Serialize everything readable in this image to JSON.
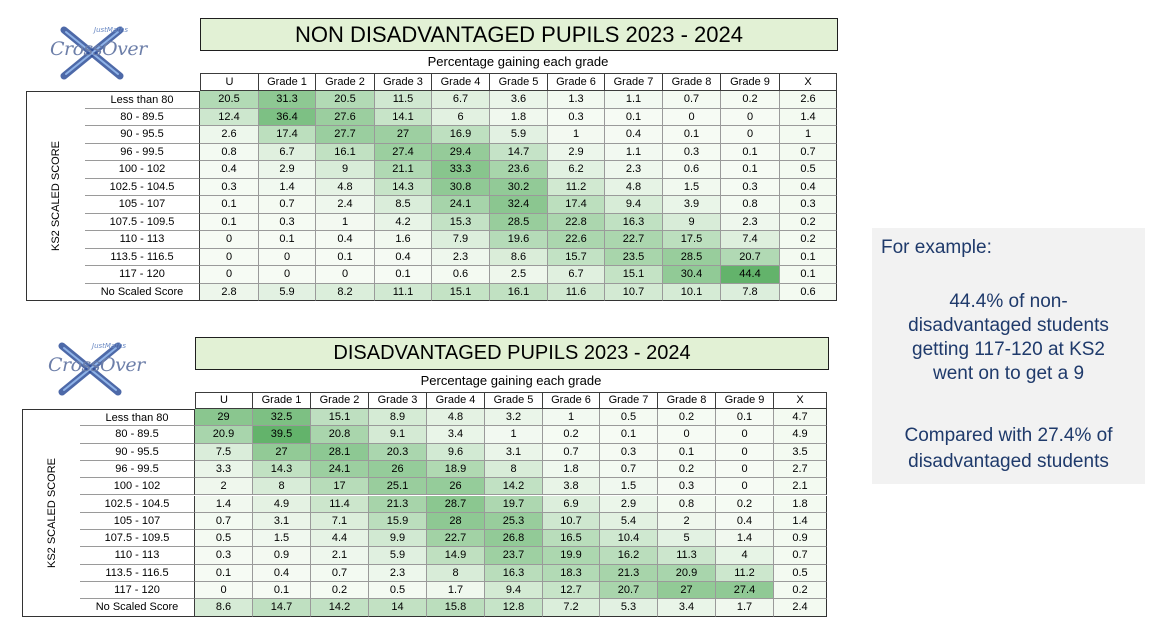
{
  "logo": {
    "word": "CrossOver",
    "small": "JustMaths"
  },
  "tables": [
    {
      "title": "NON DISADVANTAGED PUPILS 2023 - 2024",
      "subtitle": "Percentage gaining each grade",
      "side_label": "KS2 SCALED SCORE",
      "columns": [
        "U",
        "Grade 1",
        "Grade 2",
        "Grade 3",
        "Grade 4",
        "Grade 5",
        "Grade 6",
        "Grade 7",
        "Grade 8",
        "Grade 9",
        "X"
      ],
      "rows": [
        "Less than 80",
        "80 - 89.5",
        "90 - 95.5",
        "96 - 99.5",
        "100 - 102",
        "102.5 - 104.5",
        "105 - 107",
        "107.5 - 109.5",
        "110 - 113",
        "113.5 - 116.5",
        "117 - 120",
        "No Scaled Score"
      ],
      "values": [
        [
          "20.5",
          "31.3",
          "20.5",
          "11.5",
          "6.7",
          "3.6",
          "1.3",
          "1.1",
          "0.7",
          "0.2",
          "2.6"
        ],
        [
          "12.4",
          "36.4",
          "27.6",
          "14.1",
          "6",
          "1.8",
          "0.3",
          "0.1",
          "0",
          "0",
          "1.4"
        ],
        [
          "2.6",
          "17.4",
          "27.7",
          "27",
          "16.9",
          "5.9",
          "1",
          "0.4",
          "0.1",
          "0",
          "1"
        ],
        [
          "0.8",
          "6.7",
          "16.1",
          "27.4",
          "29.4",
          "14.7",
          "2.9",
          "1.1",
          "0.3",
          "0.1",
          "0.7"
        ],
        [
          "0.4",
          "2.9",
          "9",
          "21.1",
          "33.3",
          "23.6",
          "6.2",
          "2.3",
          "0.6",
          "0.1",
          "0.5"
        ],
        [
          "0.3",
          "1.4",
          "4.8",
          "14.3",
          "30.8",
          "30.2",
          "11.2",
          "4.8",
          "1.5",
          "0.3",
          "0.4"
        ],
        [
          "0.1",
          "0.7",
          "2.4",
          "8.5",
          "24.1",
          "32.4",
          "17.4",
          "9.4",
          "3.9",
          "0.8",
          "0.3"
        ],
        [
          "0.1",
          "0.3",
          "1",
          "4.2",
          "15.3",
          "28.5",
          "22.8",
          "16.3",
          "9",
          "2.3",
          "0.2"
        ],
        [
          "0",
          "0.1",
          "0.4",
          "1.6",
          "7.9",
          "19.6",
          "22.6",
          "22.7",
          "17.5",
          "7.4",
          "0.2"
        ],
        [
          "0",
          "0",
          "0.1",
          "0.4",
          "2.3",
          "8.6",
          "15.7",
          "23.5",
          "28.5",
          "20.7",
          "0.1"
        ],
        [
          "0",
          "0",
          "0",
          "0.1",
          "0.6",
          "2.5",
          "6.7",
          "15.1",
          "30.4",
          "44.4",
          "0.1"
        ],
        [
          "2.8",
          "5.9",
          "8.2",
          "11.1",
          "15.1",
          "16.1",
          "11.6",
          "10.7",
          "10.1",
          "7.8",
          "0.6"
        ]
      ]
    },
    {
      "title": "DISADVANTAGED PUPILS 2023 - 2024",
      "subtitle": "Percentage gaining each grade",
      "side_label": "KS2 SCALED SCORE",
      "columns": [
        "U",
        "Grade 1",
        "Grade 2",
        "Grade 3",
        "Grade 4",
        "Grade 5",
        "Grade 6",
        "Grade 7",
        "Grade 8",
        "Grade 9",
        "X"
      ],
      "rows": [
        "Less than 80",
        "80 - 89.5",
        "90 - 95.5",
        "96 - 99.5",
        "100 - 102",
        "102.5 - 104.5",
        "105 - 107",
        "107.5 - 109.5",
        "110 - 113",
        "113.5 - 116.5",
        "117 - 120",
        "No Scaled Score"
      ],
      "values": [
        [
          "29",
          "32.5",
          "15.1",
          "8.9",
          "4.8",
          "3.2",
          "1",
          "0.5",
          "0.2",
          "0.1",
          "4.7"
        ],
        [
          "20.9",
          "39.5",
          "20.8",
          "9.1",
          "3.4",
          "1",
          "0.2",
          "0.1",
          "0",
          "0",
          "4.9"
        ],
        [
          "7.5",
          "27",
          "28.1",
          "20.3",
          "9.6",
          "3.1",
          "0.7",
          "0.3",
          "0.1",
          "0",
          "3.5"
        ],
        [
          "3.3",
          "14.3",
          "24.1",
          "26",
          "18.9",
          "8",
          "1.8",
          "0.7",
          "0.2",
          "0",
          "2.7"
        ],
        [
          "2",
          "8",
          "17",
          "25.1",
          "26",
          "14.2",
          "3.8",
          "1.5",
          "0.3",
          "0",
          "2.1"
        ],
        [
          "1.4",
          "4.9",
          "11.4",
          "21.3",
          "28.7",
          "19.7",
          "6.9",
          "2.9",
          "0.8",
          "0.2",
          "1.8"
        ],
        [
          "0.7",
          "3.1",
          "7.1",
          "15.9",
          "28",
          "25.3",
          "10.7",
          "5.4",
          "2",
          "0.4",
          "1.4"
        ],
        [
          "0.5",
          "1.5",
          "4.4",
          "9.9",
          "22.7",
          "26.8",
          "16.5",
          "10.4",
          "5",
          "1.4",
          "0.9"
        ],
        [
          "0.3",
          "0.9",
          "2.1",
          "5.9",
          "14.9",
          "23.7",
          "19.9",
          "16.2",
          "11.3",
          "4",
          "0.7"
        ],
        [
          "0.1",
          "0.4",
          "0.7",
          "2.3",
          "8",
          "16.3",
          "18.3",
          "21.3",
          "20.9",
          "11.2",
          "0.5"
        ],
        [
          "0",
          "0.1",
          "0.2",
          "0.5",
          "1.7",
          "9.4",
          "12.7",
          "20.7",
          "27",
          "27.4",
          "0.2"
        ],
        [
          "8.6",
          "14.7",
          "14.2",
          "14",
          "15.8",
          "12.8",
          "7.2",
          "5.3",
          "3.4",
          "1.7",
          "2.4"
        ]
      ]
    }
  ],
  "chart_data": [
    {
      "type": "heatmap",
      "title": "NON DISADVANTAGED PUPILS 2023 - 2024",
      "note": "see tables[0]"
    },
    {
      "type": "heatmap",
      "title": "DISADVANTAGED PUPILS 2023 - 2024",
      "note": "see tables[1]"
    }
  ],
  "example": {
    "intro": "For example:",
    "lines": [
      "44.4% of non-",
      "disadvantaged students",
      "getting 117-120 at KS2",
      "went on to get a 9",
      "",
      "Compared with 27.4% of",
      "disadvantaged students"
    ]
  },
  "colors": {
    "heat_high": "#63b36b",
    "heat_low": "#f6fbf4",
    "title_bg": "#e2f1d5",
    "example_text": "#1f3a6b",
    "example_bg": "#f2f2f2"
  }
}
